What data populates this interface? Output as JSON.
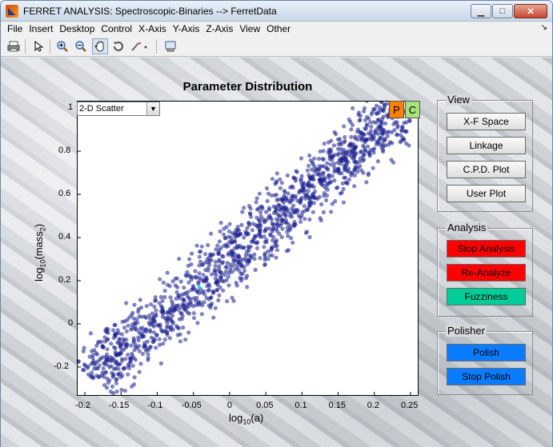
{
  "window": {
    "title": "FERRET ANALYSIS: Spectroscopic-Binaries --> FerretData",
    "minimize": "▁",
    "maximize": "□",
    "close": "✕"
  },
  "menu": [
    "File",
    "Insert",
    "Desktop",
    "Control",
    "X-Axis",
    "Y-Axis",
    "Z-Axis",
    "View",
    "Other"
  ],
  "menu_arrow": "↘",
  "plot": {
    "title": "Parameter Distribution",
    "dropdown_value": "2-D Scatter",
    "p_button": "P",
    "c_button": "C",
    "xlabel_main": "log",
    "xlabel_sub": "10",
    "xlabel_var": "(a)",
    "ylabel_main": "log",
    "ylabel_sub": "10",
    "ylabel_var1": "(mass",
    "ylabel_sub2": "2",
    "ylabel_var2": ")"
  },
  "chart_data": {
    "type": "scatter",
    "title": "Parameter Distribution",
    "xlabel": "log10(a)",
    "ylabel": "log10(mass2)",
    "xlim": [
      -0.21,
      0.26
    ],
    "ylim": [
      -0.33,
      1.03
    ],
    "x_ticks": [
      "-0.2",
      "-0.15",
      "-0.1",
      "-0.05",
      "0",
      "0.05",
      "0.1",
      "0.15",
      "0.2",
      "0.25"
    ],
    "y_ticks": [
      "-0.2",
      "0",
      "0.2",
      "0.4",
      "0.6",
      "0.8",
      "1"
    ],
    "band": {
      "x_start": -0.19,
      "y_start": -0.25,
      "x_end": 0.24,
      "y_end": 1.0
    },
    "highlight_point": {
      "x": -0.042,
      "y": 0.17
    },
    "point_color": "#1a1f8c",
    "highlight_color": "#00e5e5"
  },
  "view_panel": {
    "title": "View",
    "buttons": [
      "X-F Space",
      "Linkage",
      "C.P.D. Plot",
      "User Plot"
    ]
  },
  "analysis_panel": {
    "title": "Analysis",
    "buttons": [
      "Stop Analysis",
      "Re-Analyze",
      "Fuzziness"
    ]
  },
  "polisher_panel": {
    "title": "Polisher",
    "buttons": [
      "Polish",
      "Stop Polish"
    ]
  },
  "colors": {
    "red_button": "#ff0000",
    "teal_button": "#00cc99",
    "blue_button": "#0a7cff",
    "p_button": "#ff7f00",
    "c_button": "#a8e07a"
  }
}
